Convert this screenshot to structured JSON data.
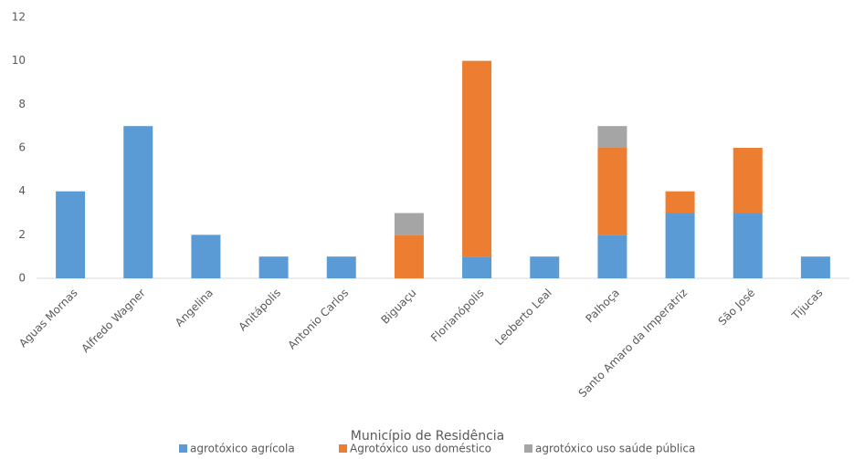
{
  "chart_data": {
    "type": "stacked_bar",
    "x_label": "Município de Residência",
    "categories": [
      "Aguas Mornas",
      "Alfredo Wagner",
      "Angelina",
      "Anitápolis",
      "Antonio Carlos",
      "Biguaçu",
      "Florianópolis",
      "Leoberto Leal",
      "Palhoça",
      "Santo Amaro da Imperatriz",
      "São José",
      "Tijucas"
    ],
    "series": [
      {
        "name": "agrotóxico agrícola",
        "color": "#5b9bd5",
        "values": [
          4,
          7,
          2,
          1,
          1,
          0,
          1,
          1,
          2,
          3,
          3,
          1
        ]
      },
      {
        "name": "Agrotóxico uso doméstico",
        "color": "#ed7d31",
        "values": [
          0,
          0,
          0,
          0,
          0,
          2,
          9,
          0,
          4,
          1,
          3,
          0
        ]
      },
      {
        "name": "agrotóxico uso saúde pública",
        "color": "#a5a5a5",
        "values": [
          0,
          0,
          0,
          0,
          0,
          1,
          0,
          0,
          1,
          0,
          0,
          0
        ]
      }
    ],
    "ylim": [
      0,
      12
    ],
    "yticks": [
      0,
      2,
      4,
      6,
      8,
      10,
      12
    ],
    "grid": false,
    "legend": "bottom"
  }
}
